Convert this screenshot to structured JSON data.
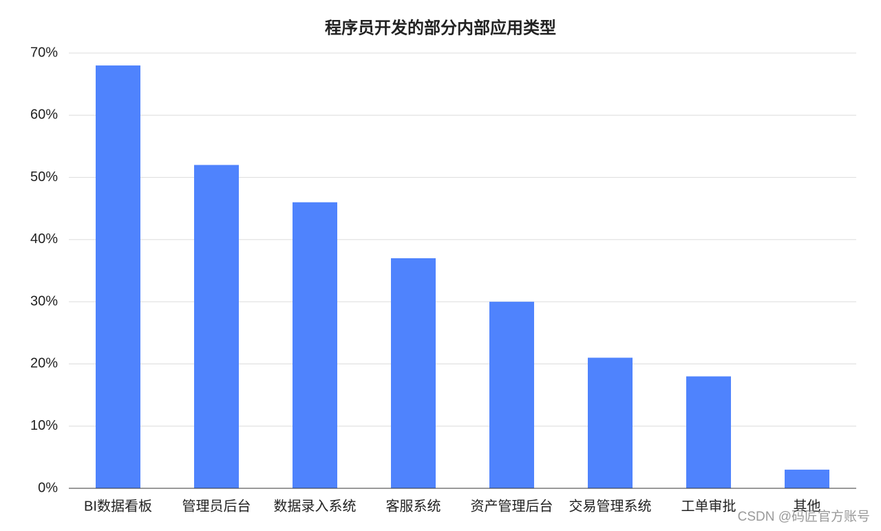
{
  "chart_data": {
    "type": "bar",
    "title": "程序员开发的部分内部应用类型",
    "categories": [
      "BI数据看板",
      "管理员后台",
      "数据录入系统",
      "客服系统",
      "资产管理后台",
      "交易管理系统",
      "工单审批",
      "其他"
    ],
    "values": [
      68,
      52,
      46,
      37,
      30,
      21,
      18,
      3
    ],
    "color": "#4f83fd",
    "ylim": [
      0,
      70
    ],
    "yticks": [
      {
        "value": 0,
        "label": "0%"
      },
      {
        "value": 10,
        "label": "10%"
      },
      {
        "value": 20,
        "label": "20%"
      },
      {
        "value": 30,
        "label": "30%"
      },
      {
        "value": 40,
        "label": "40%"
      },
      {
        "value": 50,
        "label": "50%"
      },
      {
        "value": 60,
        "label": "60%"
      },
      {
        "value": 70,
        "label": "70%"
      }
    ],
    "grid": true,
    "watermark": "CSDN @码匠官方账号"
  }
}
